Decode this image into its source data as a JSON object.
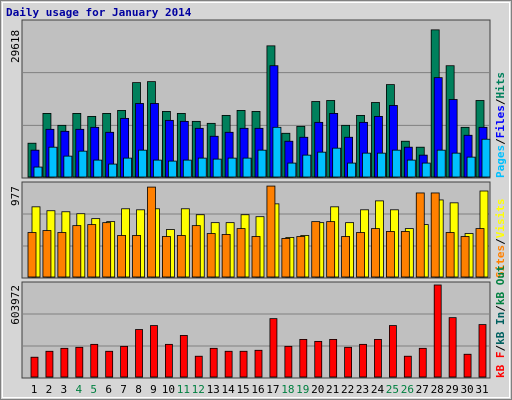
{
  "chart_data": [
    {
      "type": "bar",
      "title": "Daily usage for January 2014",
      "ylim": [
        0,
        31400
      ],
      "yticks": [
        29618
      ],
      "legend_separator": "/",
      "series": [
        {
          "name": "Hits",
          "color": "#00805c",
          "values": [
            6800,
            12800,
            10400,
            12800,
            12200,
            12800,
            13400,
            19000,
            19200,
            13200,
            12800,
            11200,
            10800,
            12400,
            13400,
            13200,
            26400,
            8800,
            10200,
            15200,
            15400,
            10400,
            12400,
            15000,
            18600,
            7200,
            6000,
            29618,
            22400,
            10000,
            15400
          ]
        },
        {
          "name": "Files",
          "color": "#0000ff",
          "values": [
            5400,
            9600,
            9200,
            9600,
            10000,
            9000,
            11800,
            14800,
            14800,
            11400,
            11200,
            9800,
            8200,
            9000,
            9800,
            9800,
            22400,
            7200,
            8000,
            11000,
            12800,
            8000,
            11000,
            12200,
            14400,
            6000,
            4400,
            20000,
            15600,
            8400,
            10000
          ]
        },
        {
          "name": "Pages",
          "color": "#00c0ff",
          "values": [
            2000,
            6000,
            4200,
            5200,
            3400,
            2600,
            3800,
            5400,
            3400,
            3200,
            3400,
            3800,
            3600,
            3800,
            3800,
            5400,
            10000,
            2800,
            4400,
            5000,
            5800,
            2800,
            4800,
            4800,
            5400,
            3400,
            2800,
            5400,
            4800,
            4000,
            7600
          ]
        }
      ]
    },
    {
      "type": "bar",
      "ylim": [
        0,
        1010
      ],
      "yticks": [
        977
      ],
      "legend_separator": "/",
      "series": [
        {
          "name": "Visits",
          "color": "#ffff00",
          "values": [
            754,
            712,
            701,
            680,
            627,
            595,
            733,
            722,
            733,
            510,
            733,
            669,
            584,
            584,
            669,
            648,
            786,
            425,
            446,
            584,
            754,
            584,
            722,
            818,
            722,
            520,
            563,
            828,
            797,
            467,
            924
          ]
        },
        {
          "name": "Sites",
          "color": "#ff8000",
          "values": [
            478,
            499,
            478,
            552,
            563,
            584,
            446,
            446,
            966,
            435,
            446,
            552,
            467,
            457,
            520,
            435,
            977,
            414,
            435,
            595,
            595,
            435,
            478,
            520,
            489,
            489,
            903,
            903,
            478,
            435,
            520
          ]
        }
      ]
    },
    {
      "type": "bar",
      "ylim": [
        0,
        617000
      ],
      "yticks": [
        603972
      ],
      "legend_separator": "/",
      "categories": [
        "1",
        "2",
        "3",
        "4",
        "5",
        "6",
        "7",
        "8",
        "9",
        "10",
        "11",
        "12",
        "13",
        "14",
        "15",
        "16",
        "17",
        "18",
        "19",
        "20",
        "21",
        "22",
        "23",
        "24",
        "25",
        "26",
        "27",
        "28",
        "29",
        "30",
        "31"
      ],
      "highlight_categories": [
        3,
        4,
        10,
        11,
        17,
        18,
        24,
        25
      ],
      "category_color": "#000000",
      "highlight_color": "#008040",
      "series": [
        {
          "name": "kB F",
          "color": "#ff0000",
          "values": [
            129880,
            168844,
            188326,
            194820,
            214302,
            168844,
            201314,
            311712,
            337688,
            214302,
            272748,
            136374,
            188326,
            168844,
            168844,
            175338,
            383146,
            201314,
            246772,
            233784,
            246772,
            194820,
            214302,
            246772,
            337688,
            136374,
            188326,
            603972,
            389640,
            149362,
            344182
          ]
        }
      ],
      "extra_legend": [
        {
          "name": "kB In",
          "color": "#006060"
        },
        {
          "name": "kB Out",
          "color": "#008040"
        }
      ]
    }
  ]
}
